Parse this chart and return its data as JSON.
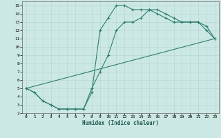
{
  "title": "",
  "xlabel": "Humidex (Indice chaleur)",
  "bg_color": "#cce8e4",
  "grid_color": "#b0d8d4",
  "line_color": "#2e7d6e",
  "xlim": [
    -0.5,
    23.5
  ],
  "ylim": [
    2,
    15.5
  ],
  "xticks": [
    0,
    1,
    2,
    3,
    4,
    5,
    6,
    7,
    8,
    9,
    10,
    11,
    12,
    13,
    14,
    15,
    16,
    17,
    18,
    19,
    20,
    21,
    22,
    23
  ],
  "yticks": [
    2,
    3,
    4,
    5,
    6,
    7,
    8,
    9,
    10,
    11,
    12,
    13,
    14,
    15
  ],
  "line1_x": [
    0,
    1,
    2,
    3,
    4,
    5,
    6,
    7,
    8,
    9,
    10,
    11,
    12,
    13,
    14,
    15,
    16,
    17,
    18,
    19,
    20,
    21,
    22,
    23
  ],
  "line1_y": [
    5,
    4.5,
    3.5,
    3,
    2.5,
    2.5,
    2.5,
    2.5,
    4.5,
    12,
    13.5,
    15,
    15,
    14.5,
    14.5,
    14.5,
    14.5,
    14,
    13.5,
    13,
    13,
    13,
    12,
    11
  ],
  "line2_x": [
    0,
    1,
    2,
    3,
    4,
    5,
    6,
    7,
    8,
    9,
    10,
    11,
    12,
    13,
    14,
    15,
    16,
    17,
    18,
    19,
    20,
    21,
    22,
    23
  ],
  "line2_y": [
    5,
    4.5,
    3.5,
    3,
    2.5,
    2.5,
    2.5,
    2.5,
    5,
    7,
    9,
    12,
    13,
    13,
    13.5,
    14.5,
    14,
    13.5,
    13,
    13,
    13,
    13,
    12.5,
    11
  ],
  "line3_x": [
    0,
    23
  ],
  "line3_y": [
    5,
    11
  ]
}
